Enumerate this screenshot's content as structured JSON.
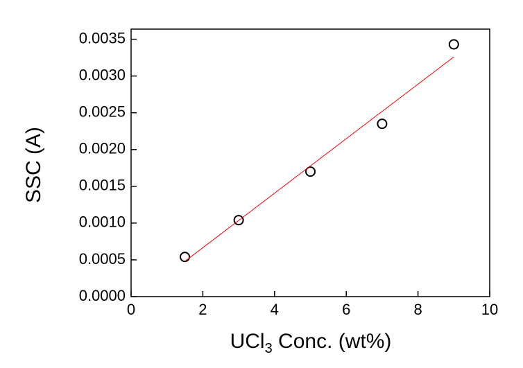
{
  "chart_data": {
    "type": "scatter",
    "y_label": "SSC (A)",
    "x_label": {
      "main": "UCl",
      "subscript": "3",
      "rest": " Conc. (wt%)"
    },
    "series": [
      {
        "color": "#000000",
        "x": [
          1.5,
          3,
          5,
          7,
          9
        ],
        "values": [
          0.00054,
          0.00104,
          0.0017,
          0.00235,
          0.00343
        ]
      },
      {
        "color": "#ff0000",
        "kind": "line",
        "x": [
          1.5,
          9
        ],
        "values": [
          0.00048,
          0.00326
        ]
      }
    ],
    "xlim": [
      0,
      10
    ],
    "xticks": [
      0,
      2,
      4,
      6,
      8,
      10
    ],
    "ylim": [
      0,
      0.0036
    ],
    "yticks": [
      {
        "value": 0,
        "label": "0.0000"
      },
      {
        "value": 0.0005,
        "label": "0.0005"
      },
      {
        "value": 0.001,
        "label": "0.0010"
      },
      {
        "value": 0.0015,
        "label": "0.0015"
      },
      {
        "value": 0.002,
        "label": "0.0020"
      },
      {
        "value": 0.0025,
        "label": "0.0025"
      },
      {
        "value": 0.003,
        "label": "0.0030"
      },
      {
        "value": 0.0035,
        "label": "0.0035"
      }
    ]
  }
}
